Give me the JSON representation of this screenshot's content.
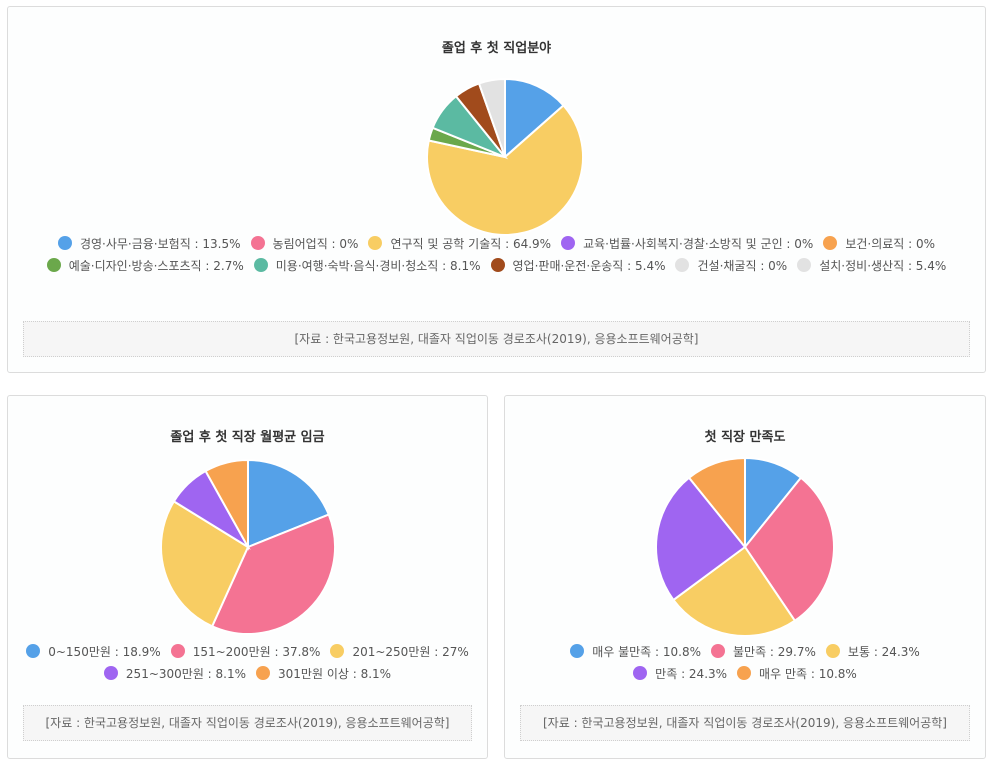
{
  "charts": [
    {
      "id": "top",
      "chart_data": {
        "type": "pie",
        "title": "졸업 후 첫 직업분야",
        "slices": [
          {
            "label": "경영·사무·금융·보험직",
            "value": 13.5,
            "color": "#55a1e8"
          },
          {
            "label": "농림어업직",
            "value": 0,
            "color": "#f47393"
          },
          {
            "label": "연구직 및 공학 기술직",
            "value": 64.9,
            "color": "#f8cd63"
          },
          {
            "label": "교육·법률·사회복지·경찰·소방직 및 군인",
            "value": 0,
            "color": "#9f65f1"
          },
          {
            "label": "보건·의료직",
            "value": 0,
            "color": "#f7a24f"
          },
          {
            "label": "예술·디자인·방송·스포츠직",
            "value": 2.7,
            "color": "#6ba84b"
          },
          {
            "label": "미용·여행·숙박·음식·경비·청소직",
            "value": 8.1,
            "color": "#5bbaa2"
          },
          {
            "label": "영업·판매·운전·운송직",
            "value": 5.4,
            "color": "#a14b1c"
          },
          {
            "label": "건설·채굴직",
            "value": 0,
            "color": "#e2e2e2"
          },
          {
            "label": "설치·정비·생산직",
            "value": 5.4,
            "color": "#e2e2e2"
          }
        ]
      },
      "legend_texts": [
        "경영·사무·금융·보험직 : 13.5%",
        "농림어업직 : 0%",
        "연구직 및 공학 기술직 : 64.9%",
        "교육·법률·사회복지·경찰·소방직 및 군인 : 0%",
        "보건·의료직 : 0%",
        "예술·디자인·방송·스포츠직 : 2.7%",
        "미용·여행·숙박·음식·경비·청소직 : 8.1%",
        "영업·판매·운전·운송직 : 5.4%",
        "건설·채굴직 : 0%",
        "설치·정비·생산직 : 5.4%"
      ],
      "source": "[자료 : 한국고용정보원, 대졸자 직업이동 경로조사(2019), 응용소프트웨어공학]"
    },
    {
      "id": "bl",
      "chart_data": {
        "type": "pie",
        "title": "졸업 후 첫 직장 월평균 임금",
        "slices": [
          {
            "label": "0~150만원",
            "value": 18.9,
            "color": "#55a1e8"
          },
          {
            "label": "151~200만원",
            "value": 37.8,
            "color": "#f47393"
          },
          {
            "label": "201~250만원",
            "value": 27,
            "color": "#f8cd63"
          },
          {
            "label": "251~300만원",
            "value": 8.1,
            "color": "#9f65f1"
          },
          {
            "label": "301만원 이상",
            "value": 8.1,
            "color": "#f7a24f"
          }
        ]
      },
      "legend_texts": [
        "0~150만원 : 18.9%",
        "151~200만원 : 37.8%",
        "201~250만원 : 27%",
        "251~300만원 : 8.1%",
        "301만원 이상 : 8.1%"
      ],
      "source": "[자료 : 한국고용정보원, 대졸자 직업이동 경로조사(2019), 응용소프트웨어공학]"
    },
    {
      "id": "br",
      "chart_data": {
        "type": "pie",
        "title": "첫 직장 만족도",
        "slices": [
          {
            "label": "매우 불만족",
            "value": 10.8,
            "color": "#55a1e8"
          },
          {
            "label": "불만족",
            "value": 29.7,
            "color": "#f47393"
          },
          {
            "label": "보통",
            "value": 24.3,
            "color": "#f8cd63"
          },
          {
            "label": "만족",
            "value": 24.3,
            "color": "#9f65f1"
          },
          {
            "label": "매우 만족",
            "value": 10.8,
            "color": "#f7a24f"
          }
        ]
      },
      "legend_texts": [
        "매우 불만족 : 10.8%",
        "불만족 : 29.7%",
        "보통 : 24.3%",
        "만족 : 24.3%",
        "매우 만족 : 10.8%"
      ],
      "source": "[자료 : 한국고용정보원, 대졸자 직업이동 경로조사(2019), 응용소프트웨어공학]"
    }
  ]
}
